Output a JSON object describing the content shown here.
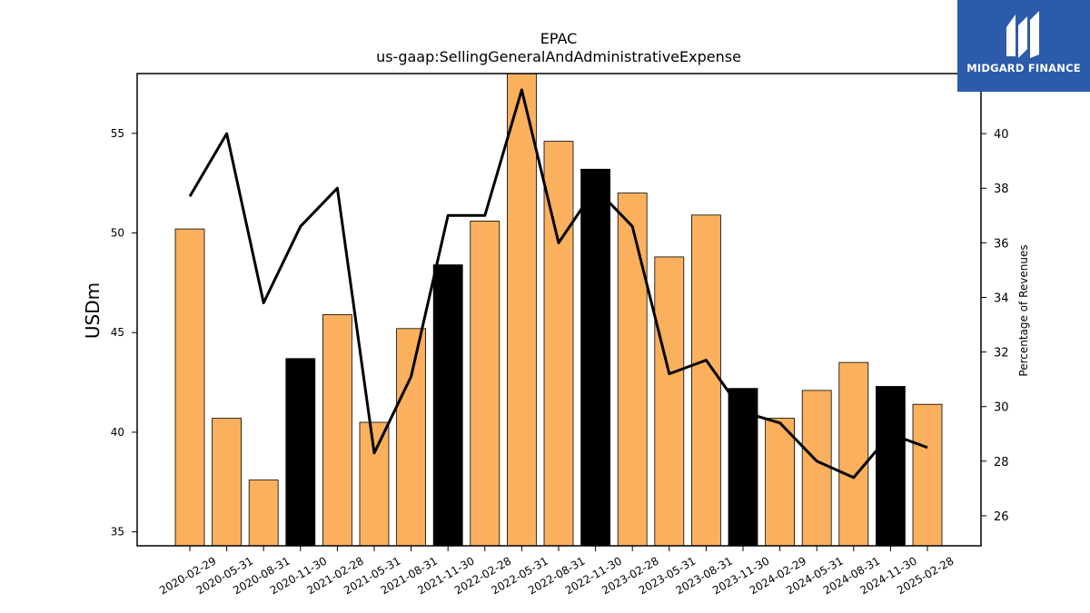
{
  "chart_data": {
    "type": "bar",
    "title": "EPAC",
    "subtitle": "us-gaap:SellingGeneralAndAdministrativeExpense",
    "ylabel": "USDm",
    "y2label": "Percentage of Revenues",
    "ylim": [
      34.3,
      58.0
    ],
    "y2lim": [
      24.9,
      42.2
    ],
    "yticks": [
      35,
      40,
      45,
      50,
      55
    ],
    "y2ticks": [
      26,
      28,
      30,
      32,
      34,
      36,
      38,
      40
    ],
    "categories": [
      "2020-02-29",
      "2020-05-31",
      "2020-08-31",
      "2020-11-30",
      "2021-02-28",
      "2021-05-31",
      "2021-08-31",
      "2021-11-30",
      "2022-02-28",
      "2022-05-31",
      "2022-08-31",
      "2022-11-30",
      "2023-02-28",
      "2023-05-31",
      "2023-08-31",
      "2023-11-30",
      "2024-02-29",
      "2024-05-31",
      "2024-08-31",
      "2024-11-30",
      "2025-02-28"
    ],
    "series": [
      {
        "type": "bar",
        "axis": "left",
        "values": [
          50.2,
          40.7,
          37.6,
          43.7,
          45.9,
          40.5,
          45.2,
          48.4,
          50.6,
          58.2,
          54.6,
          53.2,
          52.0,
          48.8,
          50.9,
          42.2,
          40.7,
          42.1,
          43.5,
          42.3,
          41.4
        ],
        "colors": [
          "#fbb05e",
          "#fbb05e",
          "#fbb05e",
          "#000000",
          "#fbb05e",
          "#fbb05e",
          "#fbb05e",
          "#000000",
          "#fbb05e",
          "#fbb05e",
          "#fbb05e",
          "#000000",
          "#fbb05e",
          "#fbb05e",
          "#fbb05e",
          "#000000",
          "#fbb05e",
          "#fbb05e",
          "#fbb05e",
          "#000000",
          "#fbb05e"
        ]
      },
      {
        "type": "line",
        "axis": "right",
        "color": "#000000",
        "values": [
          37.7,
          40.0,
          33.8,
          36.6,
          38.0,
          28.3,
          31.1,
          37.0,
          37.0,
          41.6,
          36.0,
          38.0,
          36.6,
          31.2,
          31.7,
          29.8,
          29.4,
          28.0,
          27.4,
          29.0,
          28.5
        ]
      }
    ],
    "grid": false
  },
  "logo": {
    "text": "MIDGARD FINANCE",
    "background": "#2d5bab",
    "icon": "midgard-logo-icon"
  }
}
